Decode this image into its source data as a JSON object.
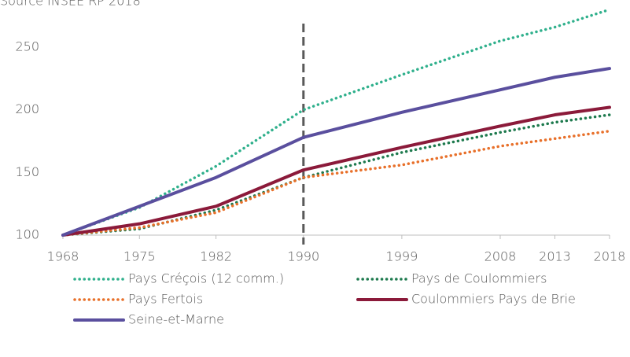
{
  "chart_data": {
    "type": "line",
    "note": "Source INSEE RP 2018",
    "x": [
      1968,
      1975,
      1982,
      1990,
      1999,
      2008,
      2013,
      2018
    ],
    "series": [
      {
        "name": "Pays Créçois (12 comm.)",
        "color": "#2fb08c",
        "style": "dotted",
        "values": [
          100,
          122,
          155,
          200,
          228,
          255,
          266,
          280
        ]
      },
      {
        "name": "Pays de Coulommiers",
        "color": "#1e7a4e",
        "style": "dotted",
        "values": [
          100,
          105,
          120,
          146,
          166,
          182,
          190,
          196
        ]
      },
      {
        "name": "Pays Fertois",
        "color": "#e8702a",
        "style": "dotted",
        "values": [
          100,
          106,
          118,
          146,
          156,
          171,
          177,
          183
        ]
      },
      {
        "name": "Coulommiers Pays de Brie",
        "color": "#8b1a3a",
        "style": "solid",
        "values": [
          100,
          109,
          123,
          152,
          170,
          187,
          196,
          202
        ]
      },
      {
        "name": "Seine-et-Marne",
        "color": "#5a4f9e",
        "style": "solid",
        "values": [
          100,
          123,
          146,
          178,
          198,
          216,
          226,
          233
        ]
      }
    ],
    "reference_x": 1990,
    "xlim": [
      1968,
      2018
    ],
    "xticks": [
      1968,
      1975,
      1982,
      1990,
      1999,
      2008,
      2013,
      2018
    ],
    "ylim": [
      100,
      250
    ],
    "yticks": [
      100,
      150,
      200,
      250
    ]
  }
}
